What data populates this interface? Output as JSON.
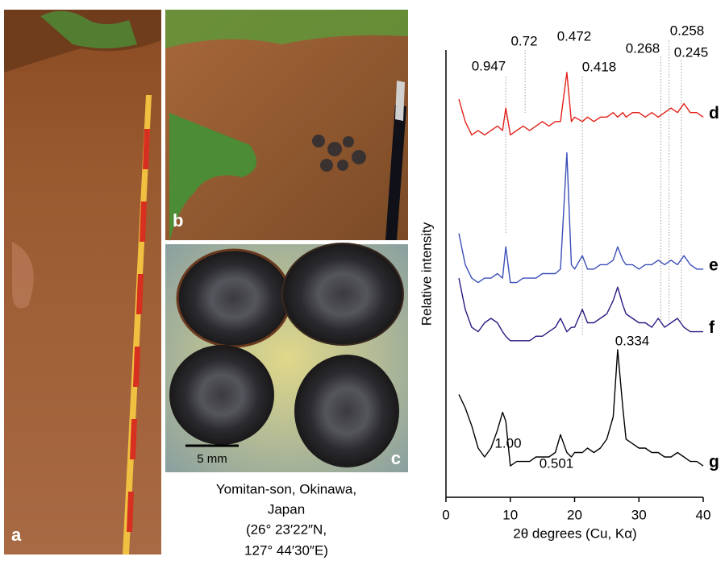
{
  "panels": [
    {
      "label": "a"
    },
    {
      "label": "b"
    },
    {
      "label": "c",
      "scale_bar": "5 mm"
    }
  ],
  "caption": [
    "Yomitan-son, Okinawa,",
    "Japan",
    "(26°  23′22″N,",
    "127°  44′30″E)"
  ],
  "chart_data": {
    "type": "line",
    "x_label": "2θ degrees (Cu, Kα)",
    "y_label": "Relative intensity",
    "xlim": [
      0,
      40
    ],
    "xticks": [
      0,
      10,
      20,
      30,
      40
    ],
    "ylim": [
      0,
      100
    ],
    "x": [
      2,
      3,
      4,
      5,
      6,
      7,
      8,
      8.8,
      9.3,
      10,
      11,
      12,
      13,
      14,
      15,
      16,
      17,
      17.8,
      18.8,
      19.5,
      20,
      21.2,
      22,
      23,
      24,
      25,
      26,
      26.7,
      27.5,
      28,
      29,
      30,
      31,
      32,
      33,
      34,
      35,
      36,
      37,
      38,
      39,
      40
    ],
    "series": [
      {
        "name": "d",
        "color": "#e32119",
        "values": [
          89,
          84,
          81,
          82,
          81,
          82,
          83,
          82,
          87,
          81,
          82,
          83,
          82,
          83,
          84,
          83,
          84,
          84,
          95,
          84,
          85,
          84,
          85,
          84,
          85,
          85,
          86,
          85,
          86,
          85,
          86,
          86,
          85,
          86,
          85,
          86,
          87,
          86,
          88,
          86,
          86,
          85
        ]
      },
      {
        "name": "e",
        "color": "#3a4fb8",
        "values": [
          59,
          52,
          49,
          48,
          49,
          49,
          50,
          49,
          56,
          48,
          48,
          49,
          49,
          49,
          50,
          50,
          50,
          51,
          77,
          52,
          51,
          54,
          51,
          51,
          52,
          52,
          53,
          56,
          53,
          52,
          52,
          51,
          52,
          52,
          53,
          52,
          53,
          52,
          54,
          52,
          51,
          51
        ]
      },
      {
        "name": "f",
        "color": "#2b1a80",
        "values": [
          49,
          42,
          38,
          37,
          39,
          40,
          39,
          37,
          36,
          35,
          35,
          35,
          35,
          36,
          36,
          37,
          38,
          40,
          37,
          38,
          38,
          42,
          39,
          39,
          40,
          41,
          44,
          47,
          43,
          41,
          40,
          39,
          39,
          38,
          40,
          38,
          39,
          40,
          38,
          37,
          37,
          37
        ]
      },
      {
        "name": "g",
        "color": "#000000",
        "values": [
          23,
          20,
          16,
          11,
          9,
          11,
          15,
          19,
          17,
          7,
          8,
          8,
          8,
          9,
          9,
          9,
          10,
          14,
          10,
          9,
          10,
          10,
          11,
          10,
          11,
          13,
          18,
          33,
          20,
          13,
          12,
          11,
          11,
          10,
          10,
          9,
          9,
          10,
          9,
          8,
          8,
          7
        ]
      }
    ],
    "peak_lines": [
      {
        "label": "0.947",
        "x": 9.3
      },
      {
        "label": "0.72",
        "x": 12.3
      },
      {
        "label": "0.472",
        "x": 18.8
      },
      {
        "label": "0.418",
        "x": 21.2
      },
      {
        "label": "0.268",
        "x": 33.4
      },
      {
        "label": "0.258",
        "x": 34.7
      },
      {
        "label": "0.245",
        "x": 36.6
      }
    ],
    "annotations": [
      "1.00",
      "0.501",
      "0.334"
    ]
  }
}
